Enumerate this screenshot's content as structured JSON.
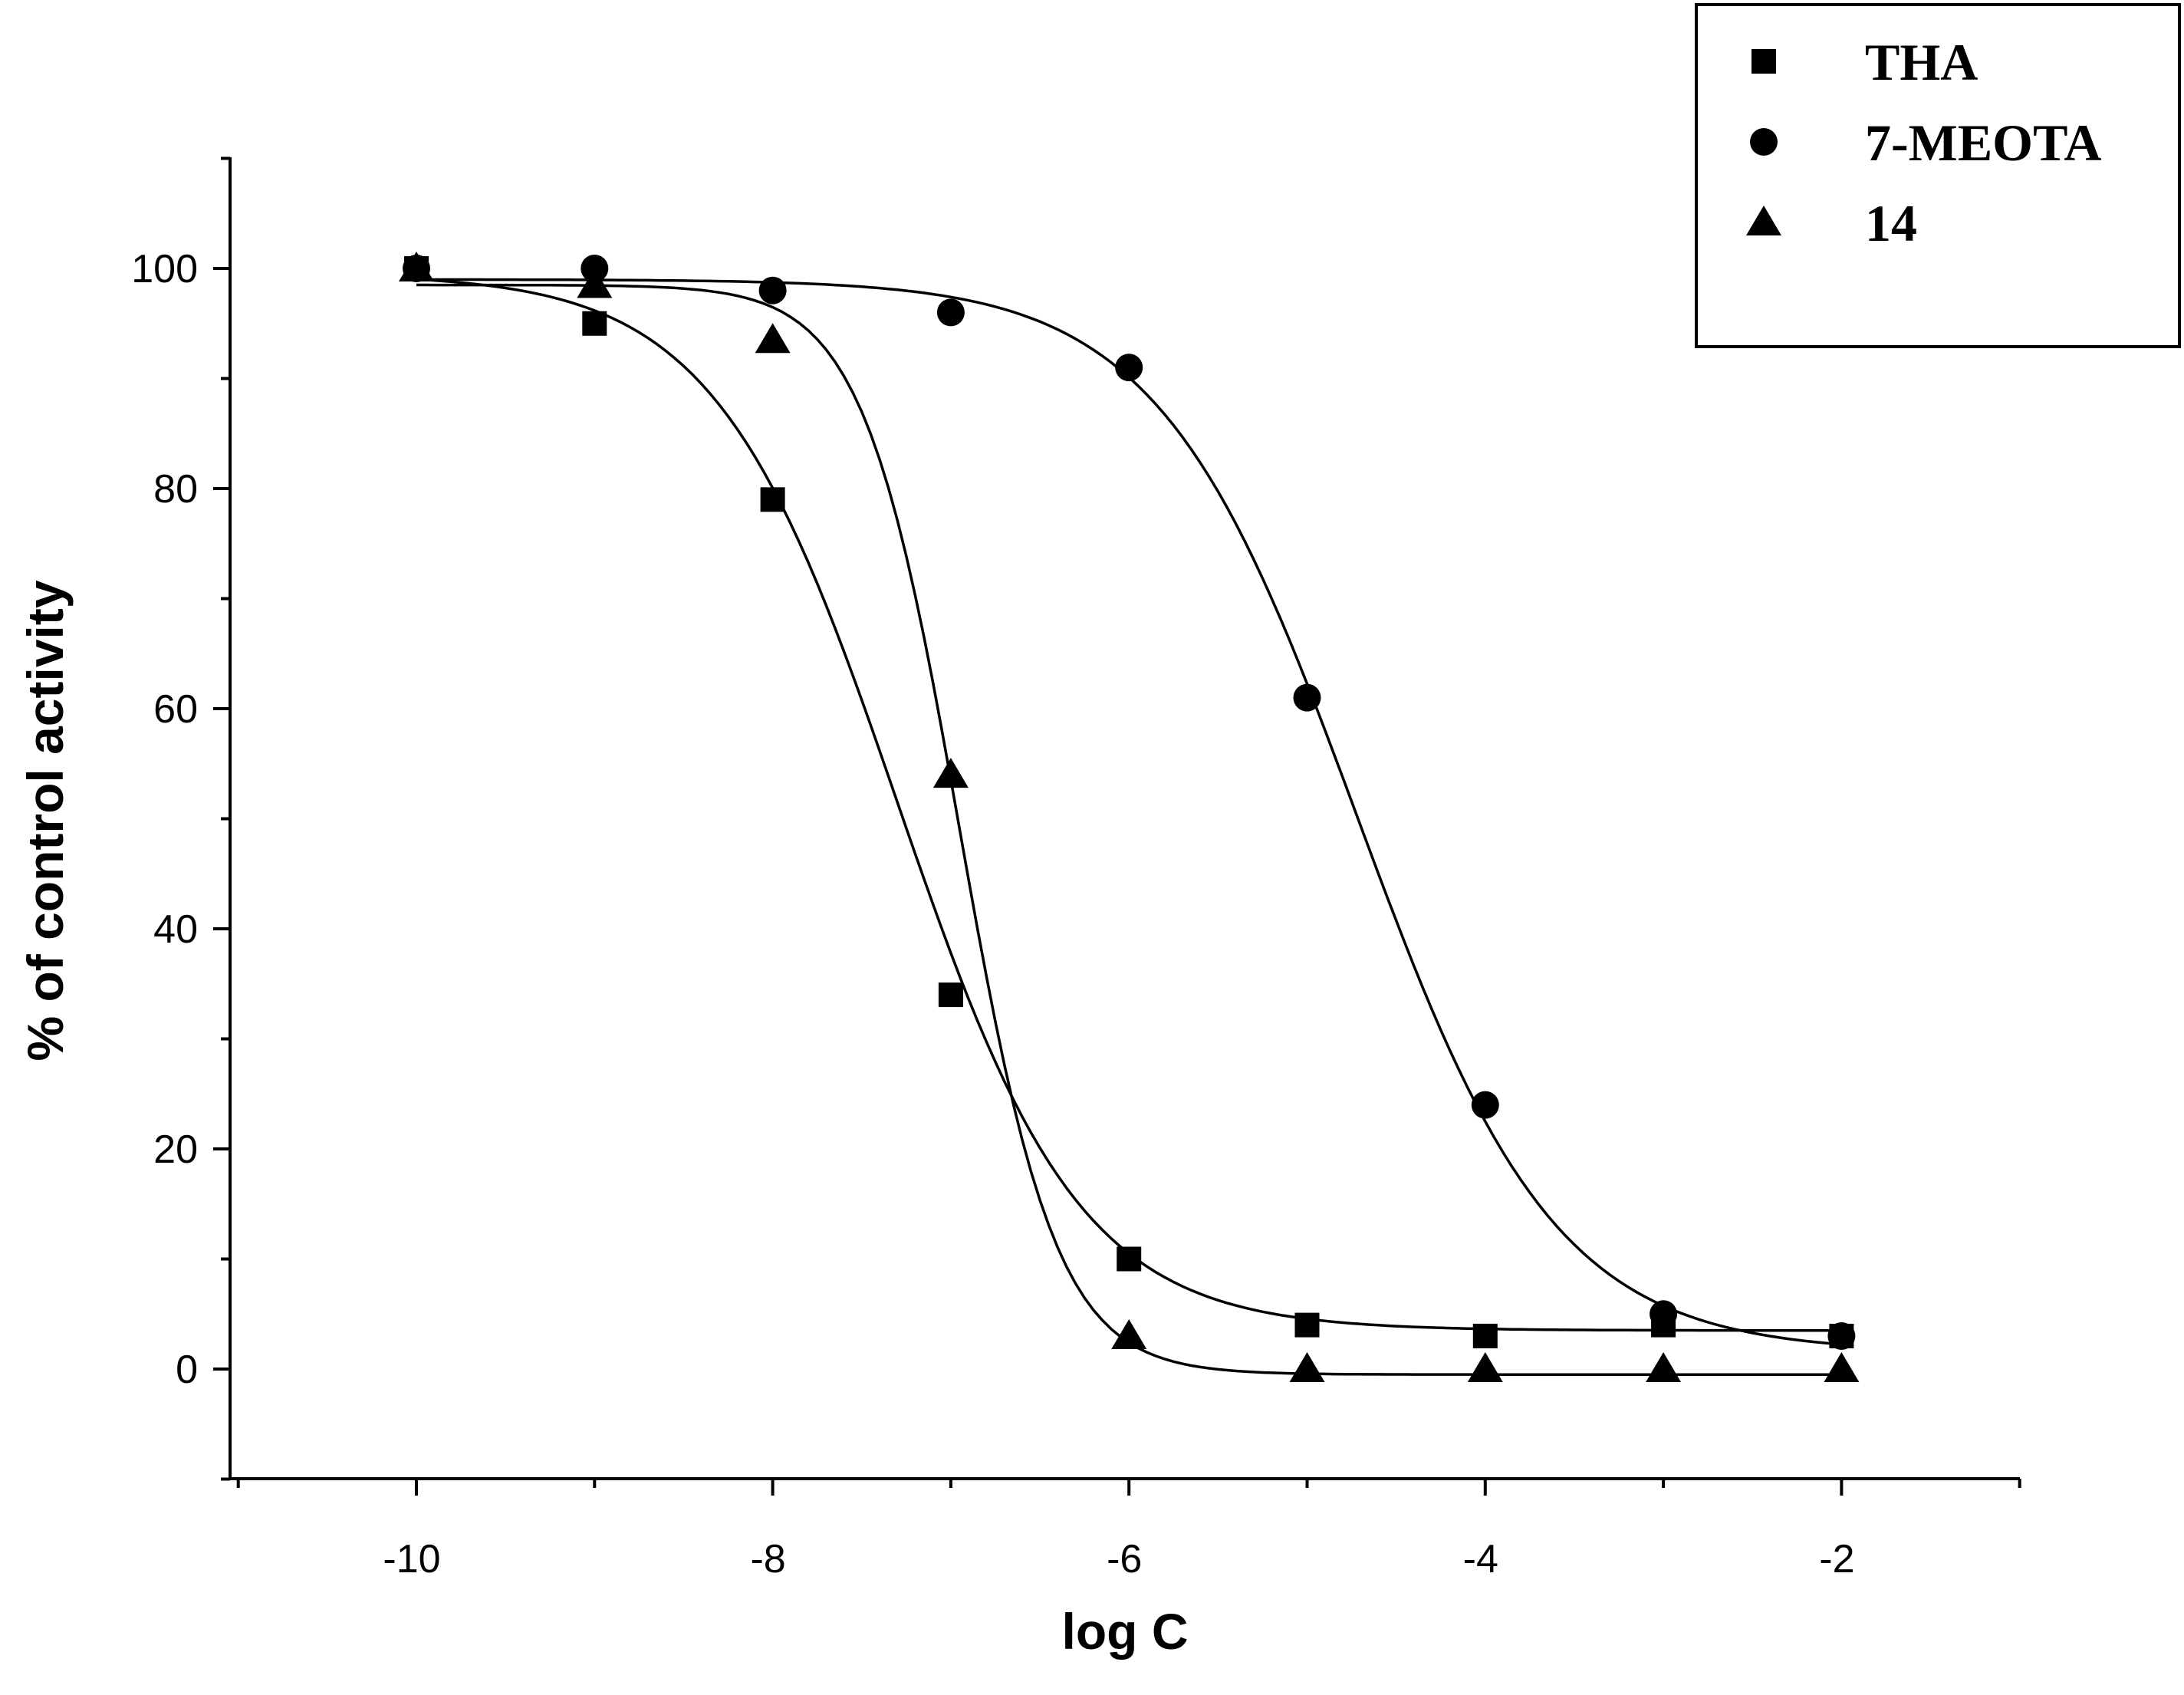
{
  "chart_data": {
    "type": "scatter",
    "title": "",
    "xlabel": "log C",
    "ylabel": "% of control activity",
    "xlim": [
      -11,
      -1
    ],
    "ylim": [
      -10,
      110
    ],
    "x_ticks": [
      -10,
      -8,
      -6,
      -4,
      -2
    ],
    "x_tick_labels": [
      "-10",
      "-8",
      "-6",
      "-4",
      "-2"
    ],
    "y_ticks": [
      0,
      20,
      40,
      60,
      80,
      100
    ],
    "y_tick_labels": [
      "0",
      "20",
      "40",
      "60",
      "80",
      "100"
    ],
    "legend_position": "top-right",
    "series": [
      {
        "name": "THA",
        "marker": "square",
        "x": [
          -10,
          -9,
          -8,
          -7,
          -6,
          -5,
          -4,
          -3,
          -2
        ],
        "y": [
          100,
          95,
          79,
          34,
          10,
          4,
          3,
          4,
          3
        ],
        "fit": {
          "top": 99.5,
          "bottom": 3.5,
          "log_ic50": -7.3,
          "hill": 0.85
        }
      },
      {
        "name": "7-MEOTA",
        "marker": "circle",
        "x": [
          -10,
          -9,
          -8,
          -7,
          -6,
          -5,
          -4,
          -3,
          -2
        ],
        "y": [
          100,
          100,
          98,
          96,
          91,
          61,
          24,
          5,
          3
        ],
        "fit": {
          "top": 99,
          "bottom": 1.5,
          "log_ic50": -4.72,
          "hill": 0.78
        }
      },
      {
        "name": "14",
        "marker": "triangle",
        "x": [
          -10,
          -9,
          -8,
          -7,
          -6,
          -5,
          -4,
          -3,
          -2
        ],
        "y": [
          100,
          98.5,
          93.5,
          54,
          3,
          0,
          0,
          0,
          0
        ],
        "fit": {
          "top": 98.5,
          "bottom": -0.5,
          "log_ic50": -6.95,
          "hill": 1.6
        }
      }
    ]
  }
}
